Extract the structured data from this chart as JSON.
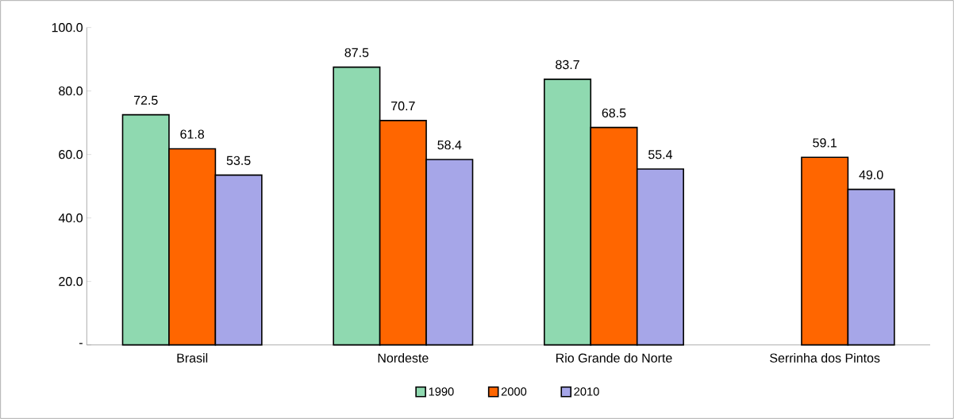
{
  "chart_data": {
    "type": "bar",
    "categories": [
      "Brasil",
      "Nordeste",
      "Rio Grande do Norte",
      "Serrinha dos Pintos"
    ],
    "series": [
      {
        "name": "1990",
        "color": "#8fd9b0",
        "values": [
          72.5,
          87.5,
          83.7,
          null
        ],
        "value_labels": [
          "72.5",
          "87.5",
          "83.7",
          null
        ]
      },
      {
        "name": "2000",
        "color": "#ff6600",
        "values": [
          61.8,
          70.7,
          68.5,
          59.1
        ],
        "value_labels": [
          "61.8",
          "70.7",
          "68.5",
          "59.1"
        ]
      },
      {
        "name": "2010",
        "color": "#a6a6e8",
        "values": [
          53.5,
          58.4,
          55.4,
          49.0
        ],
        "value_labels": [
          "53.5",
          "58.4",
          "55.4",
          "49.0"
        ]
      }
    ],
    "ylim": [
      0,
      100
    ],
    "yticks": [
      {
        "value": 0,
        "label": "-"
      },
      {
        "value": 20,
        "label": "20.0"
      },
      {
        "value": 40,
        "label": "40.0"
      },
      {
        "value": 60,
        "label": "60.0"
      },
      {
        "value": 80,
        "label": "80.0"
      },
      {
        "value": 100,
        "label": "100.0"
      }
    ],
    "legend": "bottom",
    "grid": false
  }
}
